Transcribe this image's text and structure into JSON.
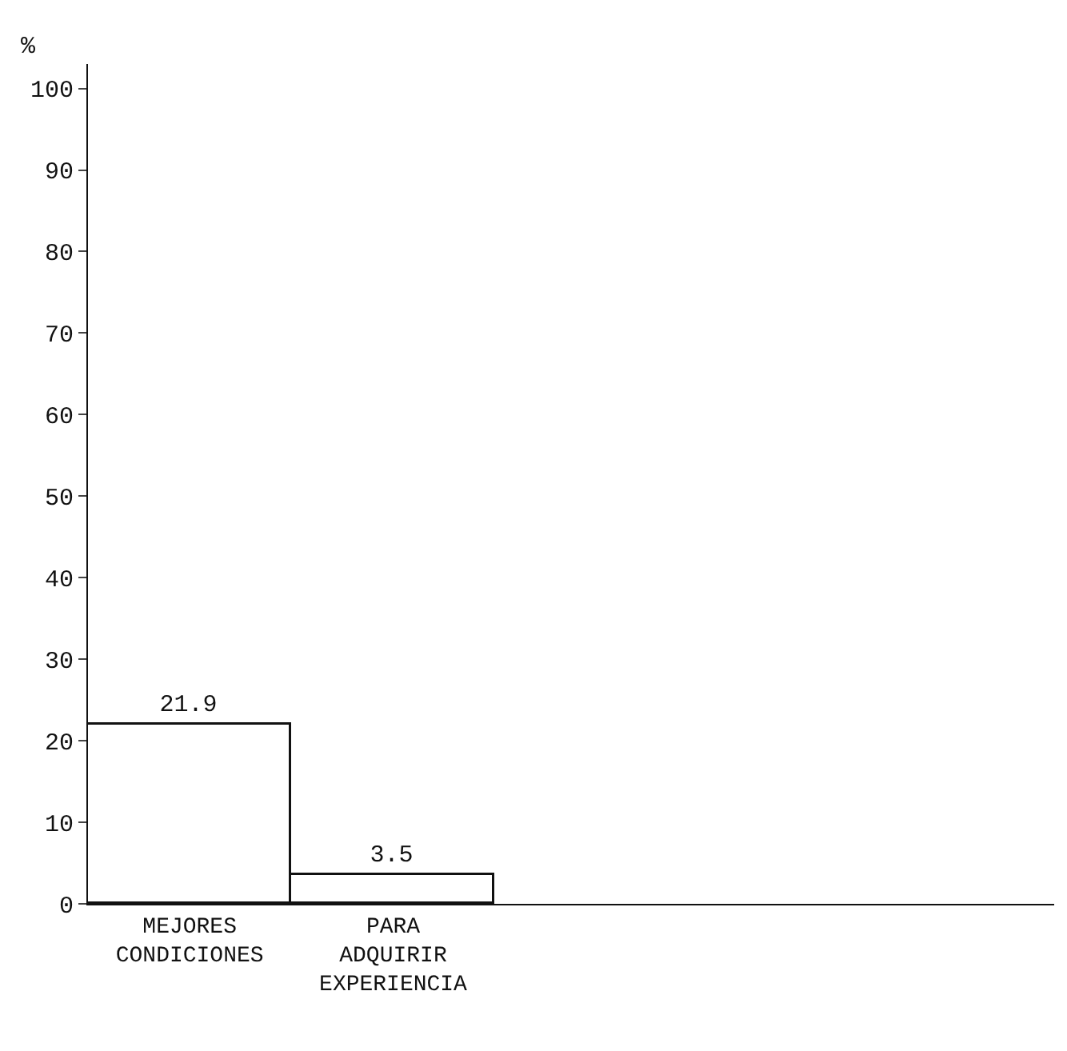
{
  "chart_data": {
    "type": "bar",
    "ylabel": "%",
    "categories": [
      "MEJORES\nCONDICIONES",
      "PARA\nADQUIRIR\nEXPERIENCIA"
    ],
    "values": [
      21.9,
      3.5
    ],
    "color": "#ffffff",
    "ylim": [
      0,
      103
    ],
    "yticks": [
      0,
      10,
      20,
      30,
      40,
      50,
      60,
      70,
      80,
      90,
      100
    ],
    "data_labels": true
  }
}
